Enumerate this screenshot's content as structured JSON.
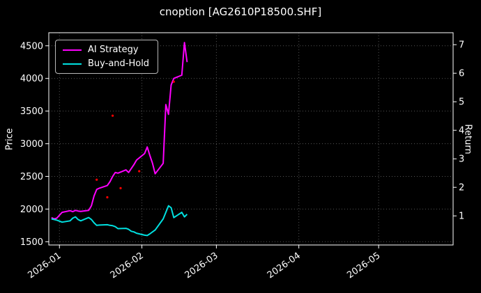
{
  "chart_data": {
    "type": "line",
    "title": "cnoption [AG2610P18500.SHF]",
    "background": "#000000",
    "text_color": "#ffffff",
    "grid_color": "#555555",
    "spine_color": "#ffffff",
    "x_range": [
      "2025-12-28",
      "2026-05-29"
    ],
    "x_ticks": [
      {
        "date": "2026-01-01",
        "label": "2026-01"
      },
      {
        "date": "2026-02-01",
        "label": "2026-02"
      },
      {
        "date": "2026-03-01",
        "label": "2026-03"
      },
      {
        "date": "2026-04-01",
        "label": "2026-04"
      },
      {
        "date": "2026-05-01",
        "label": "2026-05"
      }
    ],
    "left_axis": {
      "label": "Price",
      "min": 1450,
      "max": 4700,
      "ticks": [
        1500,
        2000,
        2500,
        3000,
        3500,
        4000,
        4500
      ]
    },
    "right_axis": {
      "label": "Return",
      "min": -0.02,
      "max": 7.42,
      "ticks": [
        1,
        2,
        3,
        4,
        5,
        6,
        7
      ]
    },
    "dates": [
      "2025-12-29",
      "2025-12-30",
      "2025-12-31",
      "2026-01-02",
      "2026-01-05",
      "2026-01-06",
      "2026-01-07",
      "2026-01-08",
      "2026-01-09",
      "2026-01-12",
      "2026-01-13",
      "2026-01-14",
      "2026-01-15",
      "2026-01-16",
      "2026-01-19",
      "2026-01-20",
      "2026-01-21",
      "2026-01-22",
      "2026-01-23",
      "2026-01-26",
      "2026-01-27",
      "2026-01-28",
      "2026-01-29",
      "2026-01-30",
      "2026-02-02",
      "2026-02-03",
      "2026-02-04",
      "2026-02-05",
      "2026-02-06",
      "2026-02-09",
      "2026-02-10",
      "2026-02-11",
      "2026-02-12",
      "2026-02-13",
      "2026-02-16",
      "2026-02-17",
      "2026-02-18"
    ],
    "series": [
      {
        "name": "AI Strategy",
        "color": "#ff00ff",
        "values": [
          1870,
          1850,
          1860,
          1950,
          1975,
          1960,
          1980,
          1970,
          1965,
          1980,
          2050,
          2200,
          2300,
          2320,
          2360,
          2420,
          2500,
          2560,
          2550,
          2600,
          2560,
          2620,
          2680,
          2750,
          2850,
          2950,
          2820,
          2700,
          2540,
          2700,
          3600,
          3450,
          3900,
          4000,
          4050,
          4550,
          4250
        ]
      },
      {
        "name": "Buy-and-Hold",
        "color": "#00e0e0",
        "values": [
          1850,
          1840,
          1830,
          1800,
          1820,
          1860,
          1880,
          1840,
          1820,
          1870,
          1840,
          1790,
          1750,
          1755,
          1760,
          1750,
          1745,
          1730,
          1700,
          1705,
          1690,
          1660,
          1650,
          1630,
          1600,
          1595,
          1620,
          1650,
          1680,
          1850,
          1950,
          2050,
          2020,
          1870,
          1950,
          1880,
          1920
        ]
      }
    ],
    "signal_markers": {
      "color": "#ff0000",
      "points": [
        {
          "date": "2026-02-13",
          "price": 3950
        },
        {
          "date": "2026-01-21",
          "price": 3430
        },
        {
          "date": "2026-01-31",
          "price": 2580
        },
        {
          "date": "2026-01-15",
          "price": 2450
        },
        {
          "date": "2026-01-24",
          "price": 2320
        },
        {
          "date": "2026-01-19",
          "price": 2180
        }
      ]
    },
    "grid": true,
    "legend_position": "upper-left"
  }
}
